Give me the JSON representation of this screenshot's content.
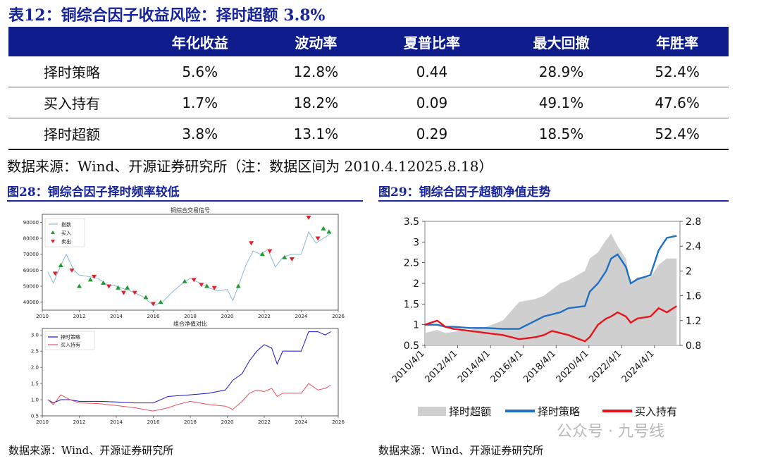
{
  "table": {
    "title": "表12：铜综合因子收益风险：择时超额 3.8%",
    "headers": [
      "",
      "年化收益",
      "波动率",
      "夏普比率",
      "最大回撤",
      "年胜率"
    ],
    "rows": [
      {
        "label": "择时策略",
        "cells": [
          "5.6%",
          "12.8%",
          "0.44",
          "28.9%",
          "52.4%"
        ]
      },
      {
        "label": "买入持有",
        "cells": [
          "1.7%",
          "18.2%",
          "0.09",
          "49.1%",
          "47.6%"
        ]
      },
      {
        "label": "择时超额",
        "cells": [
          "3.8%",
          "13.1%",
          "0.29",
          "18.5%",
          "52.4%"
        ]
      }
    ],
    "source": "数据来源：Wind、开源证券研究所（注：数据区间为 2010.4.12025.8.18）"
  },
  "figure28": {
    "title": "图28：铜综合因子择时频率较低",
    "source": "数据来源：Wind、开源证券研究所"
  },
  "figure29": {
    "title": "图29：铜综合因子超额净值走势",
    "source": "数据来源：Wind、开源证券研究所"
  },
  "watermark": "公众号 · 九号线",
  "colors": {
    "header_bg": "#0e1c8c",
    "title_blue": "#16239b",
    "strategy": "#1f6fc5",
    "hold": "#e8141b",
    "excess": "#c8c8c8"
  },
  "chart_data": [
    {
      "type": "line",
      "title": "铜综合交易信号",
      "x_ticks": [
        "2010",
        "2012",
        "2014",
        "2016",
        "2018",
        "2020",
        "2022",
        "2024",
        "2026"
      ],
      "y_ticks": [
        "40000",
        "50000",
        "60000",
        "70000",
        "80000",
        "90000"
      ],
      "ylim": [
        35000,
        95000
      ],
      "legend": [
        "指数",
        "买入",
        "卖出"
      ],
      "series": [
        {
          "name": "指数",
          "x": [
            2010.3,
            2010.6,
            2011.0,
            2011.3,
            2011.7,
            2012.0,
            2012.5,
            2013.0,
            2013.5,
            2014.0,
            2014.5,
            2015.0,
            2015.5,
            2016.0,
            2016.5,
            2017.0,
            2017.5,
            2018.0,
            2018.5,
            2019.0,
            2019.5,
            2020.0,
            2020.3,
            2020.6,
            2021.0,
            2021.4,
            2021.8,
            2022.2,
            2022.6,
            2023.0,
            2023.5,
            2024.0,
            2024.4,
            2024.8,
            2025.2,
            2025.6
          ],
          "values": [
            59000,
            52000,
            63000,
            70000,
            60000,
            57000,
            56000,
            55000,
            51000,
            50000,
            48000,
            46000,
            43000,
            38000,
            40000,
            46000,
            51000,
            55000,
            52000,
            49000,
            47000,
            48000,
            41000,
            50000,
            63000,
            72000,
            70000,
            73000,
            62000,
            68000,
            70000,
            70000,
            84000,
            77000,
            80000,
            83000
          ]
        }
      ],
      "buy_signals": [
        [
          2011.0,
          63000
        ],
        [
          2012.0,
          50000
        ],
        [
          2012.6,
          54000
        ],
        [
          2013.3,
          52000
        ],
        [
          2014.1,
          49000
        ],
        [
          2014.6,
          49000
        ],
        [
          2015.6,
          43000
        ],
        [
          2016.4,
          40000
        ],
        [
          2017.7,
          53000
        ],
        [
          2018.9,
          50000
        ],
        [
          2020.6,
          50000
        ],
        [
          2021.9,
          70000
        ],
        [
          2023.1,
          68000
        ],
        [
          2025.2,
          86000
        ],
        [
          2025.5,
          84000
        ]
      ],
      "sell_signals": [
        [
          2010.7,
          58000
        ],
        [
          2011.6,
          60000
        ],
        [
          2012.8,
          56000
        ],
        [
          2013.6,
          50000
        ],
        [
          2014.4,
          46000
        ],
        [
          2015.0,
          46000
        ],
        [
          2016.0,
          39000
        ],
        [
          2018.2,
          54000
        ],
        [
          2018.6,
          51000
        ],
        [
          2019.3,
          49000
        ],
        [
          2021.3,
          77000
        ],
        [
          2022.3,
          72000
        ],
        [
          2023.5,
          67000
        ],
        [
          2024.4,
          93000
        ],
        [
          2024.9,
          80000
        ]
      ]
    },
    {
      "type": "line",
      "title": "组合净值对比",
      "x_ticks": [
        "2010",
        "2012",
        "2014",
        "2016",
        "2018",
        "2020",
        "2022",
        "2024",
        "2026"
      ],
      "y_ticks": [
        "0.5",
        "1.0",
        "1.5",
        "2.0",
        "2.5",
        "3.0"
      ],
      "ylim": [
        0.5,
        3.2
      ],
      "legend": [
        "择时策略",
        "买入持有"
      ],
      "x": [
        2010.3,
        2010.6,
        2011.0,
        2011.5,
        2012.0,
        2013.0,
        2014.0,
        2015.0,
        2016.0,
        2016.8,
        2017.3,
        2018.0,
        2019.0,
        2019.9,
        2020.3,
        2020.8,
        2021.2,
        2021.6,
        2022.0,
        2022.4,
        2022.7,
        2023.0,
        2024.0,
        2024.4,
        2024.9,
        2025.3,
        2025.6
      ],
      "series": [
        {
          "name": "择时策略",
          "values": [
            1.0,
            0.9,
            1.0,
            1.0,
            0.95,
            0.95,
            0.93,
            0.9,
            0.9,
            1.1,
            1.12,
            1.15,
            1.2,
            1.3,
            1.6,
            1.8,
            2.2,
            2.5,
            2.7,
            2.6,
            2.1,
            2.5,
            2.5,
            3.1,
            3.1,
            3.0,
            3.1
          ]
        },
        {
          "name": "买入持有",
          "values": [
            1.0,
            0.85,
            1.15,
            1.0,
            0.9,
            0.88,
            0.82,
            0.75,
            0.65,
            0.75,
            0.85,
            0.95,
            0.85,
            0.8,
            0.7,
            0.95,
            1.2,
            1.3,
            1.25,
            1.35,
            1.1,
            1.2,
            1.2,
            1.5,
            1.3,
            1.35,
            1.45
          ]
        }
      ]
    },
    {
      "type": "area",
      "title": "铜综合因子超额净值走势",
      "x_ticks": [
        "2010/4/1",
        "2012/4/1",
        "2014/4/1",
        "2016/4/1",
        "2018/4/1",
        "2020/4/1",
        "2022/4/1",
        "2024/4/1"
      ],
      "y_left_ticks": [
        "0.5",
        "1",
        "1.5",
        "2",
        "2.5",
        "3",
        "3.5"
      ],
      "y_right_ticks": [
        "0.8",
        "1.2",
        "1.6",
        "2",
        "2.4",
        "2.8"
      ],
      "ylim_left": [
        0.5,
        3.5
      ],
      "ylim_right": [
        0.8,
        2.8
      ],
      "legend": [
        "择时超额",
        "择时策略",
        "买入持有"
      ],
      "x": [
        2010.25,
        2011.0,
        2011.5,
        2012.0,
        2013.0,
        2014.0,
        2015.0,
        2016.0,
        2017.0,
        2017.5,
        2018.0,
        2018.5,
        2019.0,
        2020.0,
        2020.3,
        2020.8,
        2021.3,
        2021.6,
        2022.0,
        2022.5,
        2022.8,
        2023.2,
        2024.0,
        2024.5,
        2025.0,
        2025.6
      ],
      "series": [
        {
          "name": "择时超额",
          "axis": "right",
          "values": [
            1.0,
            1.05,
            1.0,
            1.02,
            1.05,
            1.1,
            1.2,
            1.5,
            1.55,
            1.6,
            1.7,
            1.8,
            1.85,
            2.0,
            2.2,
            2.3,
            2.5,
            2.6,
            2.4,
            2.2,
            1.8,
            1.9,
            1.9,
            2.1,
            2.2,
            2.2
          ]
        },
        {
          "name": "择时策略",
          "axis": "left",
          "values": [
            1.0,
            1.0,
            0.95,
            0.95,
            0.92,
            0.92,
            0.9,
            0.9,
            1.1,
            1.2,
            1.25,
            1.3,
            1.4,
            1.45,
            1.8,
            2.0,
            2.3,
            2.6,
            2.7,
            2.4,
            2.0,
            2.1,
            2.2,
            2.8,
            3.1,
            3.15
          ]
        },
        {
          "name": "买入持有",
          "axis": "left",
          "values": [
            1.0,
            1.1,
            0.95,
            0.9,
            0.85,
            0.8,
            0.75,
            0.65,
            0.7,
            0.75,
            0.85,
            0.8,
            0.75,
            0.6,
            0.7,
            1.0,
            1.15,
            1.2,
            1.3,
            1.2,
            1.05,
            1.15,
            1.2,
            1.4,
            1.3,
            1.45
          ]
        }
      ]
    }
  ]
}
